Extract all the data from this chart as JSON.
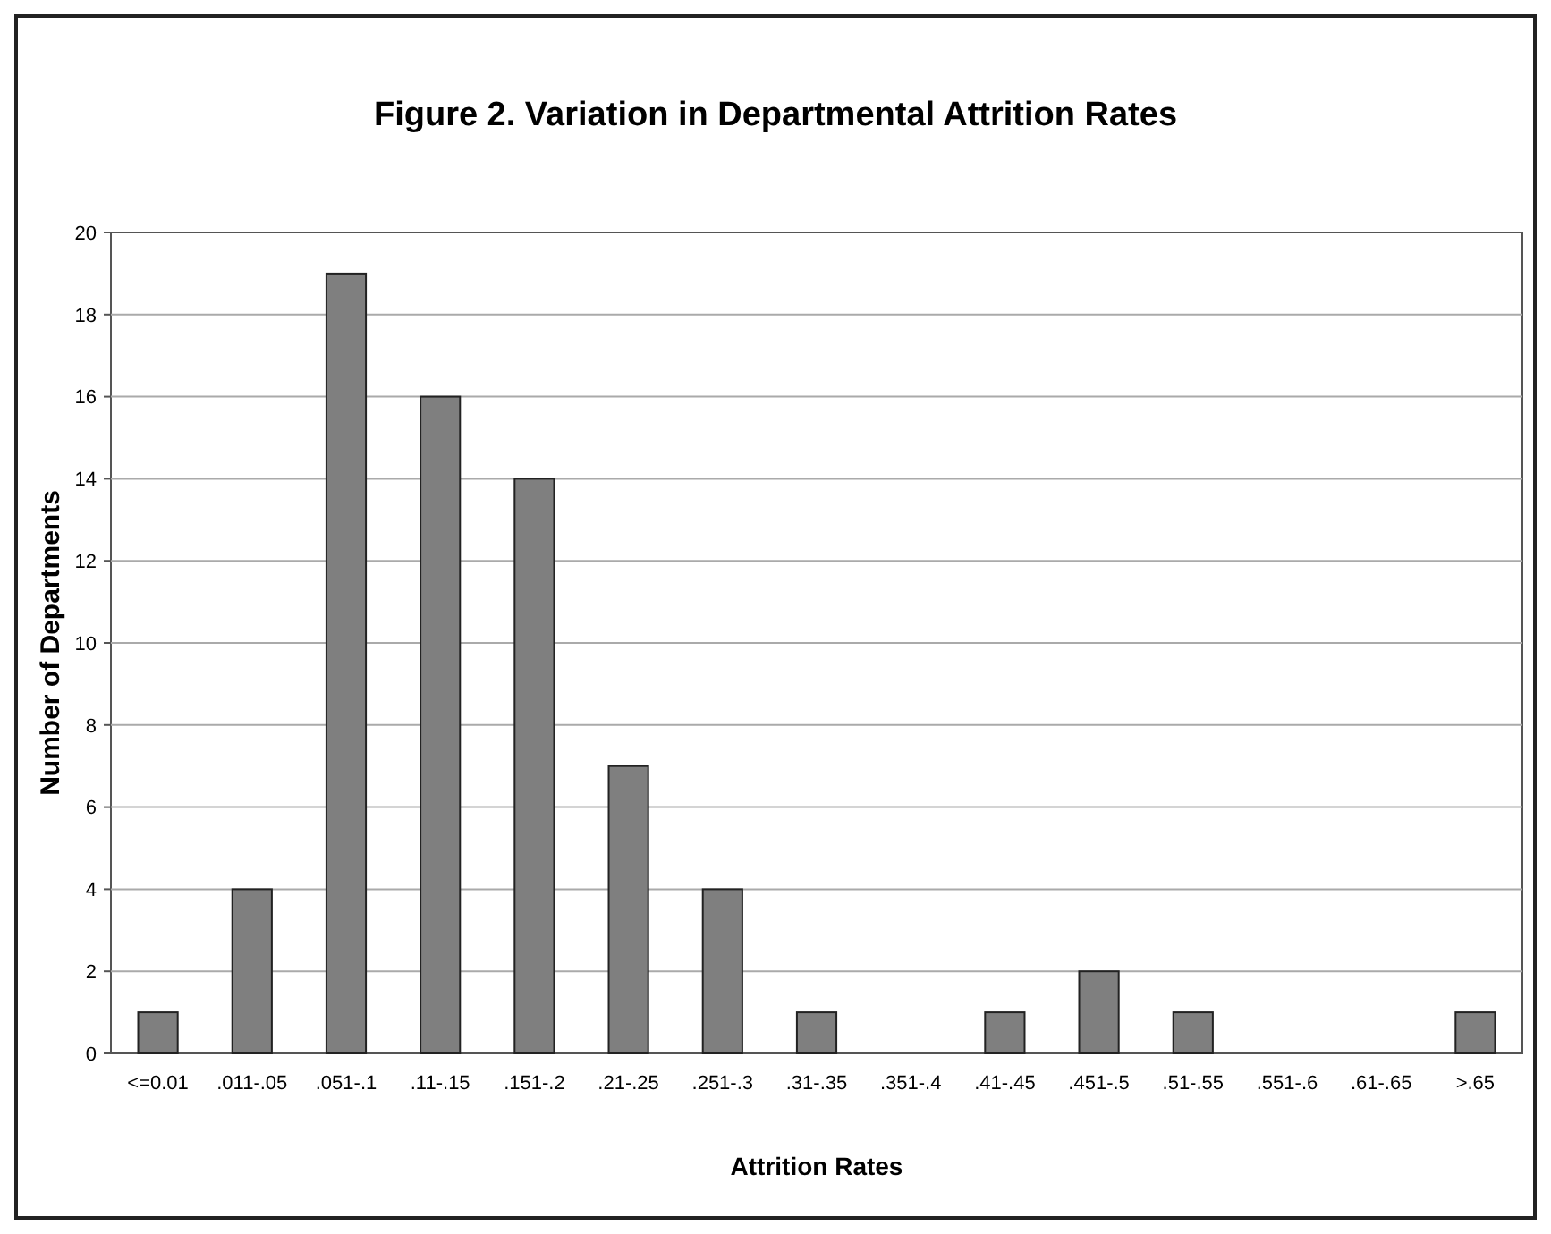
{
  "chart_data": {
    "type": "bar",
    "title": "Figure 2. Variation in Departmental Attrition Rates",
    "xlabel": "Attrition Rates",
    "ylabel": "Number of Departments",
    "categories": [
      "<=0.01",
      ".011-.05",
      ".051-.1",
      ".11-.15",
      ".151-.2",
      ".21-.25",
      ".251-.3",
      ".31-.35",
      ".351-.4",
      ".41-.45",
      ".451-.5",
      ".51-.55",
      ".551-.6",
      ".61-.65",
      ">.65"
    ],
    "values": [
      1,
      4,
      19,
      16,
      14,
      7,
      4,
      1,
      0,
      1,
      2,
      1,
      0,
      0,
      1
    ],
    "color": "#7f7f7f",
    "ylim": [
      0,
      20
    ],
    "yticks": [
      0,
      2,
      4,
      6,
      8,
      10,
      12,
      14,
      16,
      18,
      20
    ],
    "grid": "y"
  }
}
